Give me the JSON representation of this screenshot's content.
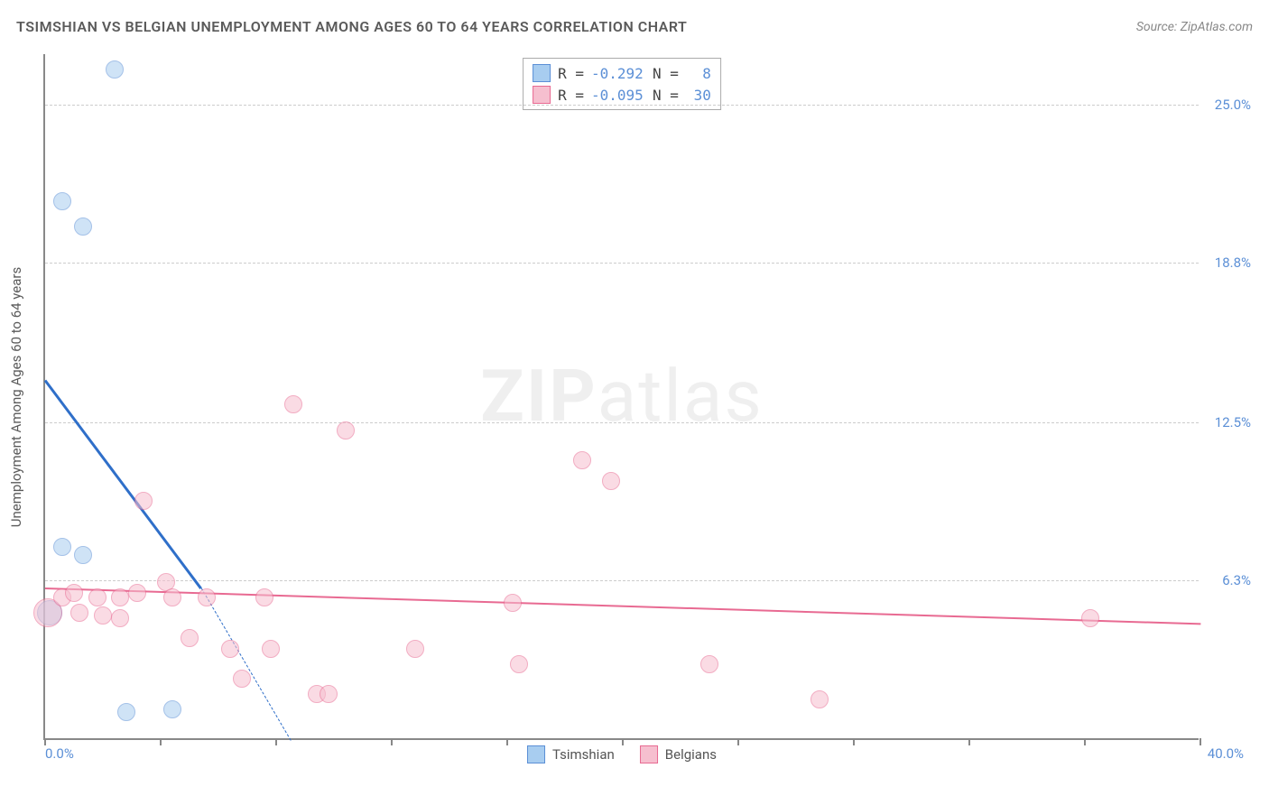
{
  "title": "TSIMSHIAN VS BELGIAN UNEMPLOYMENT AMONG AGES 60 TO 64 YEARS CORRELATION CHART",
  "source": "Source: ZipAtlas.com",
  "watermark_bold": "ZIP",
  "watermark_light": "atlas",
  "y_axis_label": "Unemployment Among Ages 60 to 64 years",
  "chart": {
    "type": "scatter",
    "background_color": "#ffffff",
    "grid_color": "#cccccc",
    "axis_color": "#888888",
    "xlim": [
      0,
      40
    ],
    "ylim": [
      0,
      27
    ],
    "x_tick_positions": [
      0,
      4,
      8,
      12,
      16,
      20,
      24,
      28,
      32,
      36,
      40
    ],
    "x_min_label": "0.0%",
    "x_max_label": "40.0%",
    "y_ticks": [
      {
        "v": 6.3,
        "label": "6.3%"
      },
      {
        "v": 12.5,
        "label": "12.5%"
      },
      {
        "v": 18.8,
        "label": "18.8%"
      },
      {
        "v": 25.0,
        "label": "25.0%"
      }
    ],
    "tick_label_color": "#5b8fd6",
    "series": [
      {
        "name": "Tsimshian",
        "fill_color": "#a8cdf0",
        "stroke_color": "#5b8fd6",
        "marker_radius": 10,
        "fill_opacity": 0.55,
        "R": "-0.292",
        "N": "8",
        "trend": {
          "x1": 0,
          "y1": 14.2,
          "x2": 5.4,
          "y2": 6.0,
          "dash_to_x": 8.5,
          "dash_to_y": 0,
          "color": "#2f6fc9",
          "width": 3
        },
        "points": [
          {
            "x": 0.15,
            "y": 5.0,
            "r": 14
          },
          {
            "x": 0.6,
            "y": 21.2
          },
          {
            "x": 1.3,
            "y": 20.2
          },
          {
            "x": 2.4,
            "y": 26.4
          },
          {
            "x": 0.6,
            "y": 7.6
          },
          {
            "x": 1.3,
            "y": 7.3
          },
          {
            "x": 2.8,
            "y": 1.1
          },
          {
            "x": 4.4,
            "y": 1.2
          }
        ]
      },
      {
        "name": "Belgians",
        "fill_color": "#f6bfcf",
        "stroke_color": "#e86a92",
        "marker_radius": 10,
        "fill_opacity": 0.55,
        "R": "-0.095",
        "N": "30",
        "trend": {
          "x1": 0,
          "y1": 6.0,
          "x2": 40,
          "y2": 4.6,
          "color": "#e86a92",
          "width": 2
        },
        "points": [
          {
            "x": 0.1,
            "y": 5.0,
            "r": 16
          },
          {
            "x": 0.6,
            "y": 5.6
          },
          {
            "x": 1.0,
            "y": 5.8
          },
          {
            "x": 1.2,
            "y": 5.0
          },
          {
            "x": 1.8,
            "y": 5.6
          },
          {
            "x": 2.0,
            "y": 4.9
          },
          {
            "x": 2.6,
            "y": 5.6
          },
          {
            "x": 2.6,
            "y": 4.8
          },
          {
            "x": 3.2,
            "y": 5.8
          },
          {
            "x": 3.4,
            "y": 9.4
          },
          {
            "x": 4.2,
            "y": 6.2
          },
          {
            "x": 4.4,
            "y": 5.6
          },
          {
            "x": 5.0,
            "y": 4.0
          },
          {
            "x": 5.6,
            "y": 5.6
          },
          {
            "x": 6.4,
            "y": 3.6
          },
          {
            "x": 6.8,
            "y": 2.4
          },
          {
            "x": 7.6,
            "y": 5.6
          },
          {
            "x": 7.8,
            "y": 3.6
          },
          {
            "x": 8.6,
            "y": 13.2
          },
          {
            "x": 9.4,
            "y": 1.8
          },
          {
            "x": 9.8,
            "y": 1.8
          },
          {
            "x": 10.4,
            "y": 12.2
          },
          {
            "x": 12.8,
            "y": 3.6
          },
          {
            "x": 16.2,
            "y": 5.4
          },
          {
            "x": 16.4,
            "y": 3.0
          },
          {
            "x": 18.6,
            "y": 11.0
          },
          {
            "x": 19.6,
            "y": 10.2
          },
          {
            "x": 23.0,
            "y": 3.0
          },
          {
            "x": 26.8,
            "y": 1.6
          },
          {
            "x": 36.2,
            "y": 4.8
          }
        ]
      }
    ]
  },
  "legend_bottom": [
    {
      "label": "Tsimshian",
      "fill": "#a8cdf0",
      "stroke": "#5b8fd6"
    },
    {
      "label": "Belgians",
      "fill": "#f6bfcf",
      "stroke": "#e86a92"
    }
  ]
}
